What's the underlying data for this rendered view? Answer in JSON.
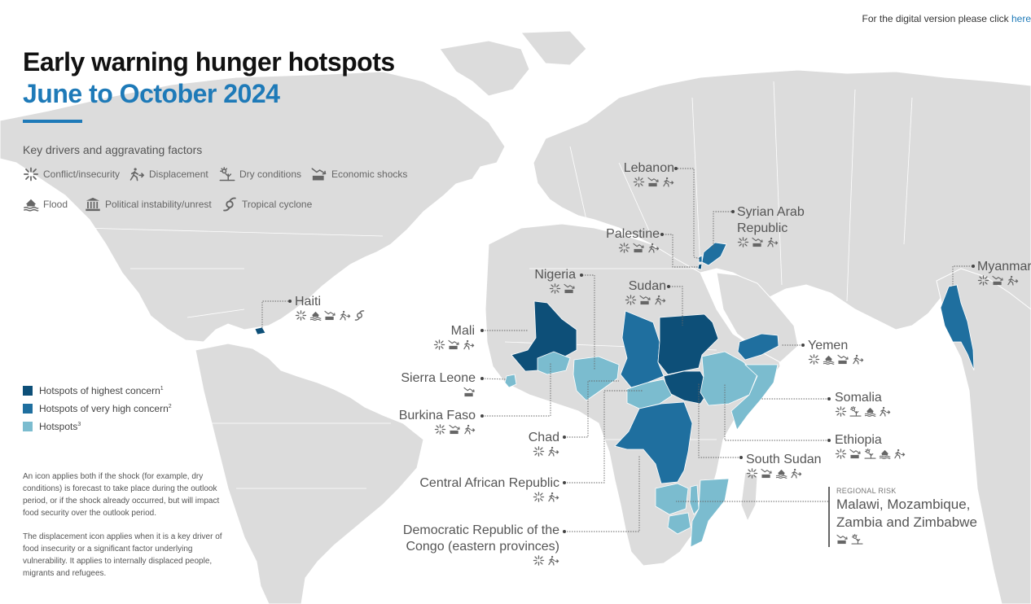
{
  "header": {
    "title": "Early warning hunger hotspots",
    "subtitle": "June to October 2024",
    "digital_text": "For the digital version please click ",
    "digital_link": "here"
  },
  "drivers": {
    "heading": "Key drivers and aggravating factors",
    "items": [
      {
        "label": "Conflict/insecurity",
        "icon": "conflict-icon"
      },
      {
        "label": "Displacement",
        "icon": "displacement-icon"
      },
      {
        "label": "Dry conditions",
        "icon": "dry-conditions-icon"
      },
      {
        "label": "Economic shocks",
        "icon": "economic-shocks-icon"
      },
      {
        "label": "Flood",
        "icon": "flood-icon"
      },
      {
        "label": "Political instability/unrest",
        "icon": "political-instability-icon"
      },
      {
        "label": "Tropical cyclone",
        "icon": "tropical-cyclone-icon"
      }
    ]
  },
  "legend": {
    "items": [
      {
        "label": "Hotspots of highest concern",
        "sup": "1",
        "color": "#0d4f78"
      },
      {
        "label": "Hotspots of very high concern",
        "sup": "2",
        "color": "#1f6f9f"
      },
      {
        "label": "Hotspots",
        "sup": "3",
        "color": "#7bbccf"
      }
    ]
  },
  "notes": {
    "note1": "An icon applies both if the shock (for example, dry conditions) is forecast to take place during the outlook period, or if the shock already occurred, but will impact food security over the outlook period.",
    "note2": "The displacement icon applies when it is a key driver of food insecurity or a significant factor underlying vulnerability. It applies to internally displaced people, migrants and refugees."
  },
  "colors": {
    "land": "#dcdcdc",
    "border": "#ffffff",
    "highest": "#0d4f78",
    "very_high": "#1f6f9f",
    "hotspot": "#7bbccf",
    "accent": "#1e7ab8"
  },
  "hotspots": [
    {
      "name": "Lebanon",
      "level": "very_high",
      "drivers": [
        "conflict",
        "economic",
        "displacement"
      ]
    },
    {
      "name": "Syrian Arab Republic",
      "line1": "Syrian Arab",
      "line2": "Republic",
      "level": "very_high",
      "drivers": [
        "conflict",
        "economic",
        "displacement"
      ]
    },
    {
      "name": "Palestine",
      "level": "highest",
      "drivers": [
        "conflict",
        "economic",
        "displacement"
      ]
    },
    {
      "name": "Nigeria",
      "level": "hotspot",
      "drivers": [
        "conflict",
        "economic"
      ]
    },
    {
      "name": "Sudan",
      "level": "highest",
      "drivers": [
        "conflict",
        "economic",
        "displacement"
      ]
    },
    {
      "name": "Haiti",
      "level": "highest",
      "drivers": [
        "conflict",
        "flood",
        "economic",
        "displacement",
        "cyclone"
      ]
    },
    {
      "name": "Mali",
      "level": "highest",
      "drivers": [
        "conflict",
        "economic",
        "displacement"
      ]
    },
    {
      "name": "Yemen",
      "level": "very_high",
      "drivers": [
        "conflict",
        "flood",
        "economic",
        "displacement"
      ]
    },
    {
      "name": "Myanmar",
      "level": "very_high",
      "drivers": [
        "conflict",
        "economic",
        "displacement"
      ]
    },
    {
      "name": "Sierra Leone",
      "level": "hotspot",
      "drivers": [
        "economic"
      ]
    },
    {
      "name": "Burkina Faso",
      "level": "hotspot",
      "drivers": [
        "conflict",
        "economic",
        "displacement"
      ]
    },
    {
      "name": "Somalia",
      "level": "hotspot",
      "drivers": [
        "conflict",
        "dry",
        "flood",
        "displacement"
      ]
    },
    {
      "name": "Chad",
      "level": "very_high",
      "drivers": [
        "conflict",
        "displacement"
      ]
    },
    {
      "name": "Ethiopia",
      "level": "hotspot",
      "drivers": [
        "conflict",
        "economic",
        "dry",
        "flood",
        "displacement"
      ]
    },
    {
      "name": "South Sudan",
      "level": "highest",
      "drivers": [
        "conflict",
        "economic",
        "flood",
        "displacement"
      ]
    },
    {
      "name": "Central African Republic",
      "level": "hotspot",
      "drivers": [
        "conflict",
        "displacement"
      ]
    },
    {
      "name": "Democratic Republic of the Congo (eastern provinces)",
      "line1": "Democratic Republic of the",
      "line2": "Congo (eastern provinces)",
      "level": "very_high",
      "drivers": [
        "conflict",
        "displacement"
      ]
    }
  ],
  "regional_risk": {
    "heading": "REGIONAL RISK",
    "line1": "Malawi, Mozambique,",
    "line2": "Zambia and Zimbabwe",
    "level": "hotspot",
    "drivers": [
      "economic",
      "dry"
    ]
  }
}
